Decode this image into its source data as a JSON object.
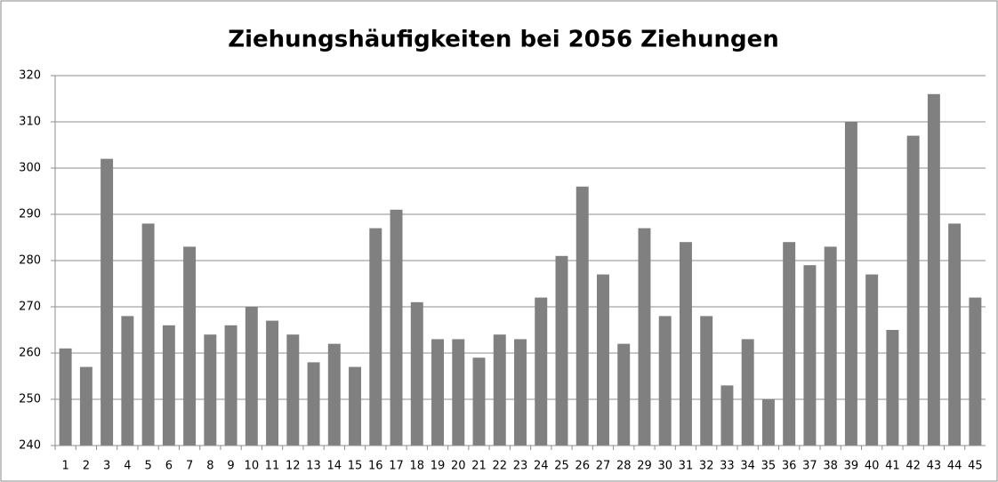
{
  "chart_data": {
    "type": "bar",
    "title": "Ziehungshäufigkeiten bei 2056 Ziehungen",
    "categories": [
      "1",
      "2",
      "3",
      "4",
      "5",
      "6",
      "7",
      "8",
      "9",
      "10",
      "11",
      "12",
      "13",
      "14",
      "15",
      "16",
      "17",
      "18",
      "19",
      "20",
      "21",
      "22",
      "23",
      "24",
      "25",
      "26",
      "27",
      "28",
      "29",
      "30",
      "31",
      "32",
      "33",
      "34",
      "35",
      "36",
      "37",
      "38",
      "39",
      "40",
      "41",
      "42",
      "43",
      "44",
      "45"
    ],
    "values": [
      261,
      257,
      302,
      268,
      288,
      266,
      283,
      264,
      266,
      270,
      267,
      264,
      258,
      262,
      257,
      287,
      291,
      271,
      263,
      263,
      259,
      264,
      263,
      272,
      281,
      296,
      277,
      262,
      287,
      268,
      284,
      268,
      253,
      263,
      250,
      284,
      279,
      283,
      310,
      277,
      265,
      307,
      316,
      288,
      272
    ],
    "color": "#808080",
    "ylim": [
      240,
      320
    ],
    "yticks": [
      240,
      250,
      260,
      270,
      280,
      290,
      300,
      310,
      320
    ],
    "grid": true
  }
}
